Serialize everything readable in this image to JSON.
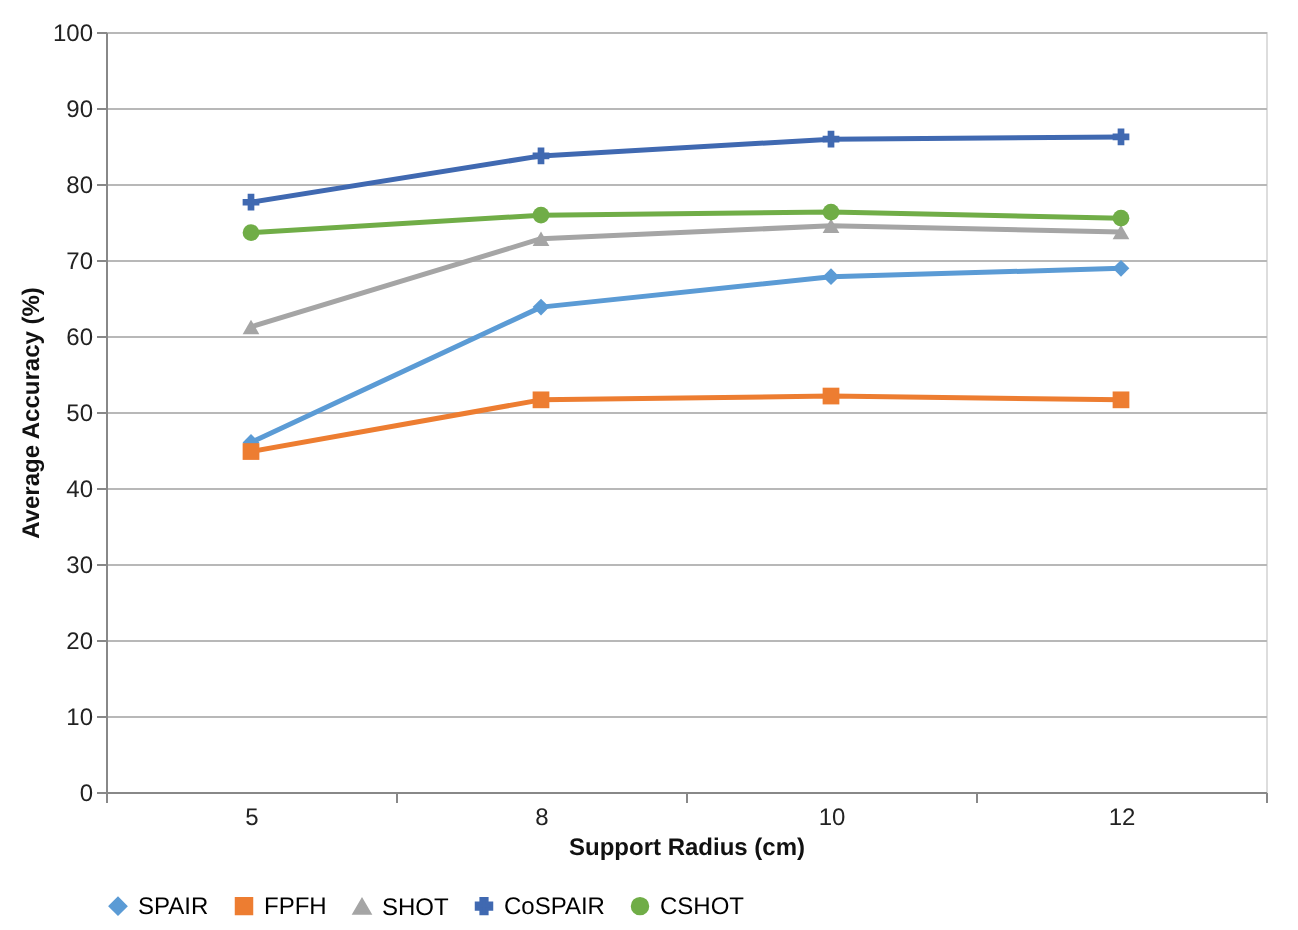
{
  "chart_data": {
    "type": "line",
    "xlabel": "Support Radius (cm)",
    "ylabel": "Average Accuracy (%)",
    "categories": [
      "5",
      "8",
      "10",
      "12"
    ],
    "series": [
      {
        "name": "SPAIR",
        "color": "#5b9bd5",
        "marker": "diamond",
        "values": [
          46.0,
          63.8,
          67.8,
          68.9
        ]
      },
      {
        "name": "FPFH",
        "color": "#ed7d31",
        "marker": "square",
        "values": [
          44.8,
          51.6,
          52.1,
          51.6
        ]
      },
      {
        "name": "SHOT",
        "color": "#a5a5a5",
        "marker": "triangle",
        "values": [
          61.2,
          72.8,
          74.5,
          73.7
        ]
      },
      {
        "name": "CoSPAIR",
        "color": "#4069b1",
        "marker": "cross",
        "values": [
          77.6,
          83.7,
          85.9,
          86.2
        ]
      },
      {
        "name": "CSHOT",
        "color": "#70ad47",
        "marker": "circle",
        "values": [
          73.6,
          75.9,
          76.3,
          75.5
        ]
      }
    ],
    "ylim": [
      0,
      100
    ],
    "yticks": [
      0,
      10,
      20,
      30,
      40,
      50,
      60,
      70,
      80,
      90,
      100
    ],
    "grid": "y",
    "legend": "bottom",
    "line_style": "solid"
  }
}
